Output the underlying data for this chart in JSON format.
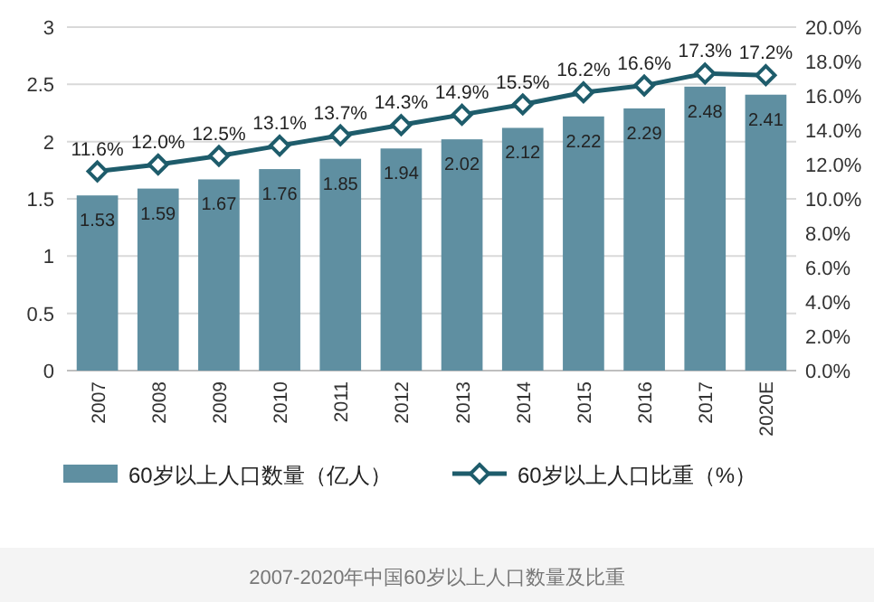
{
  "chart_data": {
    "type": "bar",
    "categories": [
      "2007",
      "2008",
      "2009",
      "2010",
      "2011",
      "2012",
      "2013",
      "2014",
      "2015",
      "2016",
      "2017",
      "2020E"
    ],
    "series": [
      {
        "name": "60岁以上人口数量（亿人）",
        "color": "#5f8fa1",
        "values": [
          1.53,
          1.59,
          1.67,
          1.76,
          1.85,
          1.94,
          2.02,
          2.12,
          2.22,
          2.29,
          2.48,
          2.41
        ],
        "value_labels": [
          "1.53",
          "1.59",
          "1.67",
          "1.76",
          "1.85",
          "1.94",
          "2.02",
          "2.12",
          "2.22",
          "2.29",
          "2.48",
          "2.41"
        ]
      },
      {
        "name": "60岁以上人口比重（%）",
        "type": "line",
        "axis": "y2",
        "color": "#1e5c6b",
        "marker": "diamond",
        "values": [
          11.6,
          12.0,
          12.5,
          13.1,
          13.7,
          14.3,
          14.9,
          15.5,
          16.2,
          16.6,
          17.3,
          17.2
        ],
        "value_labels": [
          "11.6%",
          "12.0%",
          "12.5%",
          "13.1%",
          "13.7%",
          "14.3%",
          "14.9%",
          "15.5%",
          "16.2%",
          "16.6%",
          "17.3%",
          "17.2%"
        ]
      }
    ],
    "ylim": [
      0,
      3
    ],
    "yticks": [
      0,
      0.5,
      1,
      1.5,
      2,
      2.5,
      3
    ],
    "y2lim": [
      0,
      20
    ],
    "y2ticks": [
      {
        "value": 0,
        "label": "0.0%"
      },
      {
        "value": 2,
        "label": "2.0%"
      },
      {
        "value": 4,
        "label": "4.0%"
      },
      {
        "value": 6,
        "label": "6.0%"
      },
      {
        "value": 8,
        "label": "8.0%"
      },
      {
        "value": 10,
        "label": "10.0%"
      },
      {
        "value": 12,
        "label": "12.0%"
      },
      {
        "value": 14,
        "label": "14.0%"
      },
      {
        "value": 16,
        "label": "16.0%"
      },
      {
        "value": 18,
        "label": "18.0%"
      },
      {
        "value": 20,
        "label": "20.0%"
      }
    ],
    "grid": "y",
    "legend": "bottom",
    "annotations": [
      "2007-2020年中国60岁以上人口数量及比重"
    ]
  }
}
